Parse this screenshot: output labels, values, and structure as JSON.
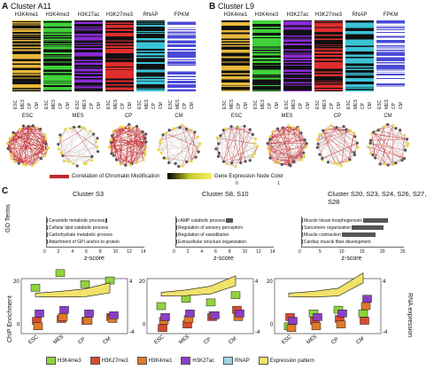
{
  "panels": {
    "A": {
      "letter": "A",
      "title": "Cluster A11"
    },
    "B": {
      "letter": "B",
      "title": "Cluster L9"
    },
    "C": {
      "letter": "C"
    }
  },
  "heatmap_columns": [
    "H3K4me1",
    "H3K4me3",
    "H3K27ac",
    "H3K27me3",
    "RNAP",
    "FPKM"
  ],
  "stages": [
    "ESC",
    "MES",
    "CP",
    "CM"
  ],
  "heatmap_colors": {
    "H3K4me1": "#e8b83a",
    "H3K4me3": "#3fd13a",
    "H3K27ac": "#8a2bd6",
    "H3K27me3": "#e02d2d",
    "RNAP": "#3cc3d6",
    "FPKM": "#4a4ad6"
  },
  "network_labels": [
    "ESC",
    "MES",
    "CP",
    "CM"
  ],
  "colorbar": {
    "left_label": "Correlation of Chromatin Modification",
    "right_label": "Gene Expression Node Color",
    "min": "0",
    "max": "1"
  },
  "go_panels": [
    {
      "title": "Cluster S3",
      "terms": [
        "Ceramide metabolic process",
        "Cellular lipid catabolic process",
        "Carbohydrate metabolic process",
        "Attachment of GPI anchor to protein"
      ],
      "values": [
        8.6,
        8.2,
        8.0,
        7.8
      ],
      "ticks": [
        "0",
        "2",
        "4",
        "6",
        "8",
        "10",
        "12",
        "14"
      ],
      "xlabel": "z-score",
      "xmax": 14
    },
    {
      "title": "Cluster S8, S10",
      "terms": [
        "cAMP catabolic process",
        "Regulation of sensory perception",
        "Regulation of vasodilation",
        "Extracellular structure organization"
      ],
      "values": [
        8.2,
        7.2,
        6.6,
        6.2
      ],
      "ticks": [
        "0",
        "2",
        "4",
        "6",
        "8",
        "10",
        "12",
        "14"
      ],
      "xlabel": "z-score",
      "xmax": 14
    },
    {
      "title": "Cluster S20, S23, S24, S26, S27, S28",
      "terms": [
        "Muscle tissue morphogenesis",
        "Sarcomere organization",
        "Muscle contraction",
        "Cardiac muscle fiber development"
      ],
      "values": [
        21,
        20,
        18,
        12
      ],
      "ticks": [
        "0",
        "5",
        "10",
        "15",
        "20",
        "25"
      ],
      "xlabel": "z-score",
      "xmax": 25
    }
  ],
  "go_axis_label": "GO Terms",
  "chip_axis": {
    "ylabel": "ChIP Enrichment",
    "yticks": [
      "20",
      "0"
    ],
    "right_label": "RNA expression",
    "right_ticks": [
      "4",
      "-4"
    ]
  },
  "legend": [
    {
      "name": "H3K4me3",
      "color": "#8fd43c"
    },
    {
      "name": "H3K27me3",
      "color": "#d94a2f"
    },
    {
      "name": "H3K4me1",
      "color": "#e07b2a"
    },
    {
      "name": "H3K27ac",
      "color": "#8a3fc6"
    },
    {
      "name": "RNAP",
      "color": "#9fd4e8"
    },
    {
      "name": "Expression pattern",
      "color": "#f2e26a"
    }
  ]
}
